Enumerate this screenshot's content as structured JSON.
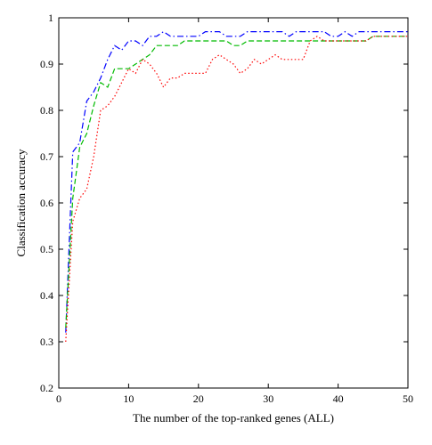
{
  "chart_data": {
    "type": "line",
    "title": "",
    "xlabel": "The number of the top-ranked genes (ALL)",
    "ylabel": "Classification accuracy",
    "xlim": [
      0,
      50
    ],
    "ylim": [
      0.2,
      1
    ],
    "xticks": [
      "0",
      "10",
      "20",
      "30",
      "40",
      "50"
    ],
    "yticks": [
      "0.2",
      "0.3",
      "0.4",
      "0.5",
      "0.6",
      "0.7",
      "0.8",
      "0.9",
      "1"
    ],
    "grid": false,
    "legend": null,
    "series": [
      {
        "color": "#0000ff",
        "style": "dashdot",
        "x": [
          1,
          2,
          3,
          4,
          5,
          6,
          7,
          8,
          9,
          10,
          11,
          12,
          13,
          14,
          15,
          16,
          17,
          18,
          19,
          20,
          21,
          22,
          23,
          24,
          25,
          26,
          27,
          28,
          29,
          30,
          31,
          32,
          33,
          34,
          35,
          36,
          37,
          38,
          39,
          40,
          41,
          42,
          43,
          44,
          45,
          46,
          47,
          48,
          49,
          50
        ],
        "y": [
          0.32,
          0.71,
          0.73,
          0.82,
          0.84,
          0.87,
          0.91,
          0.94,
          0.93,
          0.95,
          0.95,
          0.94,
          0.96,
          0.96,
          0.97,
          0.96,
          0.96,
          0.96,
          0.96,
          0.96,
          0.97,
          0.97,
          0.97,
          0.96,
          0.96,
          0.96,
          0.97,
          0.97,
          0.97,
          0.97,
          0.97,
          0.97,
          0.96,
          0.97,
          0.97,
          0.97,
          0.97,
          0.97,
          0.96,
          0.96,
          0.97,
          0.96,
          0.97,
          0.97,
          0.97,
          0.97,
          0.97,
          0.97,
          0.97,
          0.97
        ]
      },
      {
        "color": "#00bb00",
        "style": "dashed",
        "x": [
          1,
          2,
          3,
          4,
          5,
          6,
          7,
          8,
          9,
          10,
          11,
          12,
          13,
          14,
          15,
          16,
          17,
          18,
          19,
          20,
          21,
          22,
          23,
          24,
          25,
          26,
          27,
          28,
          29,
          30,
          31,
          32,
          33,
          34,
          35,
          36,
          37,
          38,
          39,
          40,
          41,
          42,
          43,
          44,
          45,
          46,
          47,
          48,
          49,
          50
        ],
        "y": [
          0.33,
          0.61,
          0.72,
          0.75,
          0.81,
          0.86,
          0.85,
          0.89,
          0.89,
          0.89,
          0.9,
          0.91,
          0.92,
          0.94,
          0.94,
          0.94,
          0.94,
          0.95,
          0.95,
          0.95,
          0.95,
          0.95,
          0.95,
          0.95,
          0.94,
          0.94,
          0.95,
          0.95,
          0.95,
          0.95,
          0.95,
          0.95,
          0.95,
          0.95,
          0.95,
          0.95,
          0.95,
          0.95,
          0.95,
          0.95,
          0.95,
          0.95,
          0.95,
          0.95,
          0.96,
          0.96,
          0.96,
          0.96,
          0.96,
          0.96
        ]
      },
      {
        "color": "#ff0000",
        "style": "dotted",
        "x": [
          1,
          2,
          3,
          4,
          5,
          6,
          7,
          8,
          9,
          10,
          11,
          12,
          13,
          14,
          15,
          16,
          17,
          18,
          19,
          20,
          21,
          22,
          23,
          24,
          25,
          26,
          27,
          28,
          29,
          30,
          31,
          32,
          33,
          34,
          35,
          36,
          37,
          38,
          39,
          40,
          41,
          42,
          43,
          44,
          45,
          46,
          47,
          48,
          49,
          50
        ],
        "y": [
          0.3,
          0.56,
          0.61,
          0.63,
          0.7,
          0.8,
          0.81,
          0.83,
          0.86,
          0.89,
          0.88,
          0.91,
          0.9,
          0.88,
          0.85,
          0.87,
          0.87,
          0.88,
          0.88,
          0.88,
          0.88,
          0.91,
          0.92,
          0.91,
          0.9,
          0.88,
          0.89,
          0.91,
          0.9,
          0.91,
          0.92,
          0.91,
          0.91,
          0.91,
          0.91,
          0.95,
          0.96,
          0.95,
          0.95,
          0.95,
          0.95,
          0.95,
          0.95,
          0.95,
          0.96,
          0.96,
          0.96,
          0.96,
          0.96,
          0.96
        ]
      }
    ]
  }
}
